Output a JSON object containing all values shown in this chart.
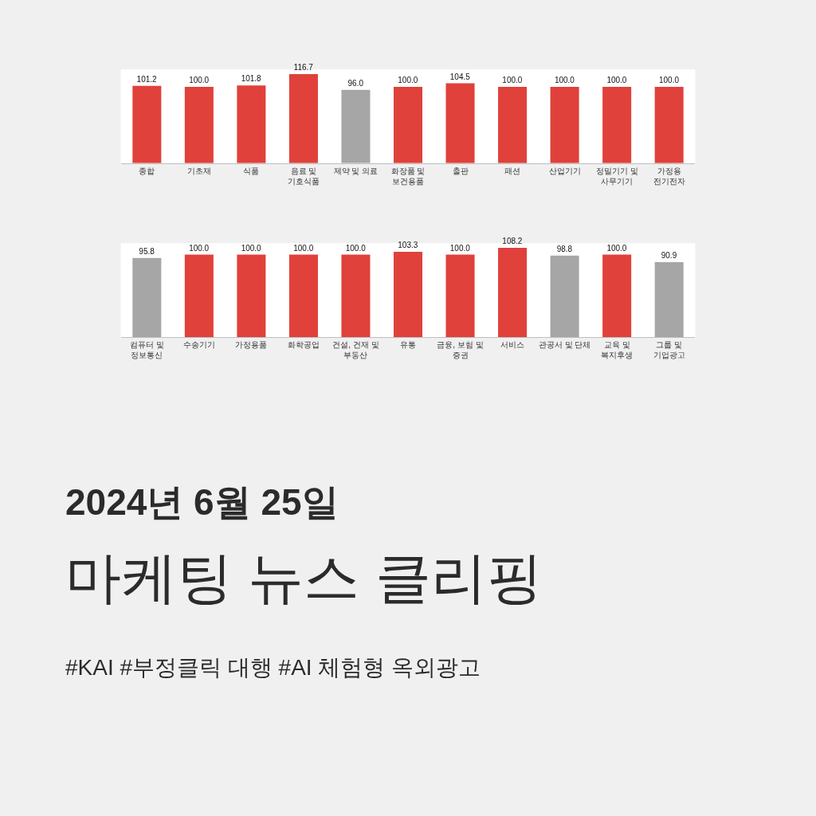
{
  "chart_data": [
    {
      "type": "bar",
      "categories": [
        "종합",
        "기초재",
        "식품",
        "음료 및\n기호식품",
        "제약 및 의료",
        "화장품 및\n보건용품",
        "출판",
        "패션",
        "산업기기",
        "정밀기기 및\n사무기기",
        "가정용\n전기전자"
      ],
      "values": [
        101.2,
        100.0,
        101.8,
        116.7,
        96.0,
        100.0,
        104.5,
        100.0,
        100.0,
        100.0,
        100.0
      ],
      "value_labels": [
        "101.2",
        "100.0",
        "101.8",
        "116.7",
        "96.0",
        "100.0",
        "104.5",
        "100.0",
        "100.0",
        "100.0",
        "100.0"
      ],
      "colors": [
        "#e0413a",
        "#e0413a",
        "#e0413a",
        "#e0413a",
        "#a6a6a6",
        "#e0413a",
        "#e0413a",
        "#e0413a",
        "#e0413a",
        "#e0413a",
        "#e0413a"
      ],
      "tick_labels": "x"
    },
    {
      "type": "bar",
      "categories": [
        "컴퓨터 및\n정보통신",
        "수송기기",
        "가정용품",
        "화학공업",
        "건설, 건재 및\n부동산",
        "유통",
        "금융, 보험 및\n증권",
        "서비스",
        "관공서 및 단체",
        "교육 및\n복지후생",
        "그룹 및\n기업광고"
      ],
      "values": [
        95.8,
        100.0,
        100.0,
        100.0,
        100.0,
        103.3,
        100.0,
        108.2,
        98.8,
        100.0,
        90.9
      ],
      "value_labels": [
        "95.8",
        "100.0",
        "100.0",
        "100.0",
        "100.0",
        "103.3",
        "100.0",
        "108.2",
        "98.8",
        "100.0",
        "90.9"
      ],
      "colors": [
        "#a6a6a6",
        "#e0413a",
        "#e0413a",
        "#e0413a",
        "#e0413a",
        "#e0413a",
        "#e0413a",
        "#e0413a",
        "#a6a6a6",
        "#e0413a",
        "#a6a6a6"
      ],
      "tick_labels": "x",
      "title": "2024년 6월 25일",
      "subtitle": "마케팅 뉴스 클리핑",
      "annotations": [
        "#KAI #부정클릭 대행 #AI 체험형 옥외광고"
      ]
    }
  ]
}
